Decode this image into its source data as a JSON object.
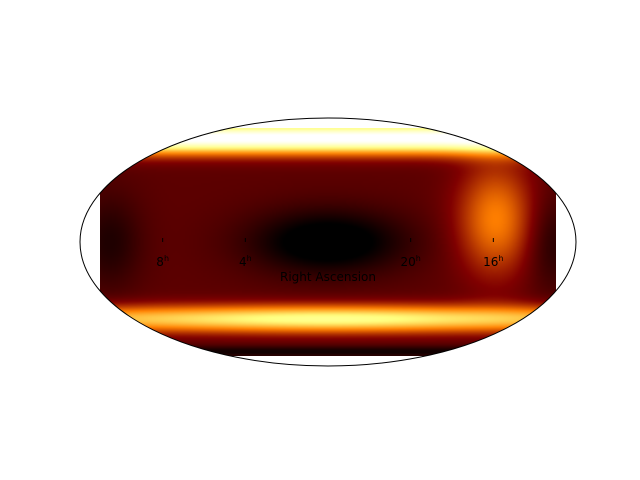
{
  "chart_data": {
    "type": "heatmap",
    "projection": "hammer",
    "colormap": "afmhot",
    "xlabel": "Right Ascension",
    "ylabel": "",
    "title": "",
    "x_ticks": [
      {
        "value": 120,
        "label": "8",
        "sup": "h"
      },
      {
        "value": 60,
        "label": "4",
        "sup": "h"
      },
      {
        "value": -60,
        "label": "20",
        "sup": "h"
      },
      {
        "value": -120,
        "label": "16",
        "sup": "h"
      }
    ],
    "xlim": [
      -180,
      180
    ],
    "ylim": [
      -90,
      90
    ],
    "grid": false,
    "colorbar": false
  }
}
